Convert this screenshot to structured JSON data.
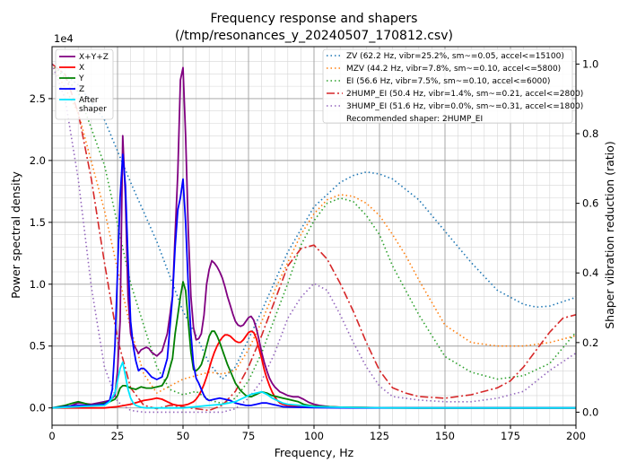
{
  "chart_data": {
    "type": "line",
    "title": "Frequency response and shapers",
    "subtitle": "(/tmp/resonances_y_20240507_170812.csv)",
    "xlabel": "Frequency, Hz",
    "ylabel": "Power spectral density",
    "y2label": "Shaper vibration reduction (ratio)",
    "y_scale_label": "1e4",
    "xlim": [
      0,
      200
    ],
    "ylim": [
      -1400,
      29200
    ],
    "y2lim": [
      -0.0375,
      1.05
    ],
    "x_ticks": [
      0,
      25,
      50,
      75,
      100,
      125,
      150,
      175,
      200
    ],
    "x_tick_labels": [
      "0",
      "25",
      "50",
      "75",
      "100",
      "125",
      "150",
      "175",
      "200"
    ],
    "y_ticks": [
      0,
      5000,
      10000,
      15000,
      20000,
      25000
    ],
    "y_tick_labels": [
      "0.0",
      "0.5",
      "1.0",
      "1.5",
      "2.0",
      "2.5"
    ],
    "y2_ticks": [
      0,
      0.2,
      0.4,
      0.6,
      0.8,
      1.0
    ],
    "y2_tick_labels": [
      "0.0",
      "0.2",
      "0.4",
      "0.6",
      "0.8",
      "1.0"
    ],
    "grid": true,
    "psd_series": [
      {
        "name": "X+Y+Z",
        "color": "#800080",
        "width": 1.8,
        "dash": "",
        "x": [
          5,
          10,
          15,
          20,
          22,
          24,
          25,
          26,
          27,
          28,
          29,
          30,
          31,
          32,
          33,
          34,
          35,
          36,
          37,
          38,
          40,
          42,
          44,
          46,
          47,
          48,
          49,
          50,
          51,
          52,
          53,
          54,
          55,
          56,
          57,
          58,
          59,
          60,
          61,
          62,
          63,
          64,
          65,
          66,
          67,
          68,
          69,
          70,
          71,
          72,
          73,
          74,
          75,
          76,
          77,
          78,
          79,
          80,
          81,
          82,
          83,
          84,
          85,
          86,
          87,
          88,
          90,
          92,
          94,
          96,
          98,
          100,
          102,
          104,
          106,
          110,
          115,
          120,
          125,
          130,
          135,
          140,
          150,
          160,
          170,
          180,
          190,
          200
        ],
        "y": [
          0,
          400,
          300,
          500,
          600,
          1000,
          3000,
          7000,
          22000,
          17000,
          9000,
          6000,
          5200,
          4800,
          4400,
          4700,
          4800,
          4900,
          4800,
          4500,
          4200,
          4600,
          6000,
          9000,
          14000,
          19000,
          26500,
          27500,
          22000,
          14500,
          9000,
          6500,
          5500,
          5600,
          6000,
          7500,
          10000,
          11200,
          11900,
          11700,
          11400,
          11000,
          10500,
          9800,
          9000,
          8300,
          7600,
          7000,
          6700,
          6600,
          6700,
          7000,
          7300,
          7400,
          7100,
          6400,
          5500,
          4500,
          3700,
          3000,
          2400,
          2000,
          1700,
          1500,
          1300,
          1200,
          1000,
          900,
          900,
          700,
          450,
          300,
          200,
          150,
          100,
          60,
          40,
          30,
          20,
          10,
          5,
          0,
          0,
          0,
          0,
          0,
          0,
          0
        ]
      },
      {
        "name": "X",
        "color": "#ff0000",
        "width": 1.8,
        "dash": "",
        "x": [
          0,
          10,
          20,
          25,
          30,
          35,
          38,
          40,
          42,
          44,
          46,
          48,
          50,
          52,
          54,
          55,
          56,
          57,
          58,
          59,
          60,
          61,
          62,
          63,
          64,
          65,
          66,
          67,
          68,
          69,
          70,
          71,
          72,
          73,
          74,
          75,
          76,
          77,
          78,
          79,
          80,
          81,
          82,
          83,
          84,
          85,
          86,
          87,
          88,
          90,
          95,
          100,
          110,
          120,
          130,
          140,
          150,
          160,
          170,
          180,
          190,
          200
        ],
        "y": [
          0,
          0,
          0,
          100,
          300,
          600,
          700,
          800,
          700,
          500,
          300,
          200,
          200,
          300,
          500,
          700,
          1000,
          1400,
          1900,
          2500,
          3200,
          3900,
          4500,
          5000,
          5400,
          5700,
          5900,
          5900,
          5800,
          5600,
          5400,
          5300,
          5300,
          5500,
          5800,
          6100,
          6200,
          6100,
          5600,
          4800,
          4000,
          3100,
          2400,
          1800,
          1300,
          900,
          600,
          400,
          300,
          200,
          100,
          80,
          50,
          30,
          10,
          0,
          0,
          0,
          0,
          0,
          0,
          0
        ]
      },
      {
        "name": "Y",
        "color": "#008000",
        "width": 1.8,
        "dash": "",
        "x": [
          0,
          5,
          8,
          10,
          12,
          15,
          18,
          20,
          22,
          24,
          25,
          26,
          27,
          28,
          29,
          30,
          32,
          34,
          36,
          38,
          40,
          42,
          44,
          46,
          47,
          48,
          49,
          50,
          51,
          52,
          53,
          54,
          55,
          56,
          57,
          58,
          59,
          60,
          61,
          62,
          63,
          64,
          65,
          66,
          67,
          68,
          69,
          70,
          72,
          74,
          76,
          78,
          80,
          82,
          84,
          86,
          88,
          90,
          92,
          94,
          96,
          98,
          100,
          105,
          110,
          115,
          120,
          125,
          130,
          140,
          150,
          160,
          170,
          180,
          190,
          200
        ],
        "y": [
          0,
          200,
          400,
          500,
          400,
          200,
          300,
          400,
          500,
          700,
          1000,
          1600,
          1800,
          1800,
          1700,
          1600,
          1500,
          1700,
          1600,
          1600,
          1700,
          1800,
          2500,
          4000,
          6000,
          7500,
          9000,
          10200,
          9500,
          7000,
          4500,
          3100,
          3000,
          3200,
          3500,
          4200,
          5000,
          5800,
          6200,
          6200,
          5800,
          5300,
          4700,
          4100,
          3500,
          3000,
          2500,
          2000,
          1400,
          1000,
          900,
          1100,
          1300,
          1200,
          1000,
          900,
          800,
          700,
          600,
          500,
          300,
          200,
          150,
          100,
          60,
          40,
          30,
          10,
          0,
          0,
          0,
          0,
          0,
          0,
          0,
          0
        ]
      },
      {
        "name": "Z",
        "color": "#0000ff",
        "width": 1.8,
        "dash": "",
        "x": [
          0,
          5,
          10,
          15,
          20,
          22,
          23,
          24,
          25,
          26,
          27,
          28,
          29,
          30,
          31,
          32,
          33,
          34,
          35,
          36,
          38,
          40,
          42,
          44,
          46,
          47,
          48,
          49,
          50,
          51,
          52,
          53,
          54,
          55,
          56,
          57,
          58,
          59,
          60,
          62,
          64,
          66,
          68,
          70,
          72,
          74,
          76,
          78,
          80,
          82,
          84,
          86,
          88,
          90,
          95,
          100,
          110,
          120,
          130,
          140,
          150,
          160,
          170,
          180,
          190,
          200
        ],
        "y": [
          0,
          100,
          200,
          200,
          300,
          600,
          1500,
          5000,
          11000,
          17000,
          20500,
          18000,
          12000,
          7000,
          5000,
          3800,
          3000,
          3200,
          3200,
          3000,
          2500,
          2300,
          2500,
          4000,
          9000,
          13000,
          16000,
          17000,
          18500,
          15000,
          10000,
          6000,
          3500,
          2400,
          2000,
          1500,
          1000,
          700,
          600,
          700,
          800,
          700,
          600,
          400,
          300,
          200,
          200,
          300,
          400,
          400,
          300,
          200,
          100,
          80,
          50,
          20,
          10,
          0,
          0,
          0,
          0,
          0,
          0,
          0,
          0,
          0
        ]
      },
      {
        "name": "After\nshaper",
        "color": "#00e5ff",
        "width": 1.8,
        "dash": "",
        "x": [
          0,
          10,
          20,
          22,
          24,
          25,
          26,
          27,
          28,
          29,
          30,
          31,
          32,
          34,
          36,
          38,
          40,
          45,
          50,
          55,
          60,
          65,
          70,
          72,
          74,
          76,
          78,
          80,
          82,
          84,
          86,
          88,
          90,
          95,
          100,
          110,
          120,
          130,
          140,
          150,
          160,
          170,
          180,
          190,
          200
        ],
        "y": [
          0,
          100,
          200,
          500,
          1200,
          2200,
          3200,
          3700,
          2600,
          1500,
          800,
          400,
          200,
          50,
          0,
          0,
          0,
          0,
          0,
          100,
          200,
          300,
          500,
          700,
          900,
          1100,
          1200,
          1300,
          1100,
          800,
          600,
          400,
          300,
          200,
          100,
          50,
          20,
          10,
          0,
          0,
          0,
          0,
          0,
          0,
          0
        ]
      }
    ],
    "shaper_series": [
      {
        "name": "ZV (62.2 Hz, vibr=25.2%, sm~=0.05, accel<=15100)",
        "color": "#1f77b4",
        "width": 1.6,
        "dash": "1.5,3",
        "x": [
          0,
          10,
          20,
          30,
          40,
          50,
          55,
          60,
          65,
          70,
          75,
          80,
          90,
          100,
          110,
          115,
          120,
          125,
          130,
          140,
          150,
          160,
          170,
          180,
          185,
          190,
          200
        ],
        "y": [
          1.0,
          0.94,
          0.84,
          0.66,
          0.49,
          0.29,
          0.22,
          0.14,
          0.095,
          0.13,
          0.21,
          0.29,
          0.46,
          0.59,
          0.66,
          0.68,
          0.69,
          0.684,
          0.67,
          0.61,
          0.52,
          0.43,
          0.35,
          0.31,
          0.302,
          0.305,
          0.33
        ]
      },
      {
        "name": "MZV (44.2 Hz, vibr=7.8%, sm~=0.10, accel<=5800)",
        "color": "#ff7f0e",
        "width": 1.6,
        "dash": "1.5,3",
        "x": [
          0,
          10,
          20,
          25,
          30,
          35,
          40,
          45,
          50,
          55,
          60,
          65,
          70,
          75,
          80,
          85,
          90,
          95,
          100,
          105,
          110,
          115,
          120,
          125,
          130,
          135,
          140,
          150,
          160,
          170,
          180,
          190,
          200
        ],
        "y": [
          1.0,
          0.86,
          0.58,
          0.41,
          0.24,
          0.11,
          0.055,
          0.075,
          0.095,
          0.105,
          0.115,
          0.11,
          0.12,
          0.18,
          0.26,
          0.35,
          0.43,
          0.51,
          0.57,
          0.61,
          0.625,
          0.62,
          0.6,
          0.565,
          0.51,
          0.45,
          0.38,
          0.25,
          0.2,
          0.19,
          0.19,
          0.2,
          0.22
        ]
      },
      {
        "name": "EI (56.6 Hz, vibr=7.5%, sm~=0.10, accel<=6000)",
        "color": "#2ca02c",
        "width": 1.6,
        "dash": "1.5,3",
        "x": [
          0,
          10,
          20,
          25,
          30,
          40,
          45,
          50,
          55,
          60,
          65,
          70,
          75,
          80,
          90,
          95,
          100,
          105,
          110,
          115,
          120,
          125,
          130,
          140,
          150,
          160,
          170,
          180,
          190,
          200
        ],
        "y": [
          1.0,
          0.92,
          0.71,
          0.54,
          0.37,
          0.13,
          0.065,
          0.05,
          0.06,
          0.035,
          0.025,
          0.04,
          0.09,
          0.17,
          0.37,
          0.48,
          0.55,
          0.6,
          0.615,
          0.605,
          0.565,
          0.51,
          0.42,
          0.28,
          0.16,
          0.115,
          0.095,
          0.105,
          0.14,
          0.23
        ]
      },
      {
        "name": "2HUMP_EI (50.4 Hz, vibr=1.4%, sm~=0.21, accel<=2800)",
        "color": "#d62728",
        "width": 1.6,
        "dash": "9,3,2,3",
        "x": [
          0,
          5,
          10,
          15,
          20,
          25,
          30,
          35,
          40,
          45,
          50,
          55,
          60,
          65,
          70,
          75,
          80,
          85,
          90,
          95,
          100,
          105,
          110,
          115,
          120,
          125,
          130,
          135,
          140,
          150,
          160,
          170,
          175,
          180,
          185,
          190,
          195,
          200
        ],
        "y": [
          1.0,
          0.97,
          0.86,
          0.67,
          0.43,
          0.21,
          0.07,
          0.02,
          0.01,
          0.02,
          0.015,
          0.01,
          0.005,
          0.02,
          0.06,
          0.13,
          0.22,
          0.32,
          0.42,
          0.47,
          0.48,
          0.44,
          0.37,
          0.29,
          0.2,
          0.12,
          0.07,
          0.055,
          0.045,
          0.04,
          0.05,
          0.07,
          0.09,
          0.13,
          0.18,
          0.23,
          0.27,
          0.28
        ]
      },
      {
        "name": "3HUMP_EI (51.6 Hz, vibr=0.0%, sm~=0.31, accel<=1800)",
        "color": "#9467bd",
        "width": 1.6,
        "dash": "1.5,3",
        "x": [
          0,
          5,
          10,
          15,
          20,
          25,
          30,
          35,
          40,
          45,
          50,
          55,
          60,
          65,
          70,
          75,
          80,
          85,
          90,
          95,
          100,
          105,
          110,
          115,
          120,
          125,
          130,
          140,
          150,
          160,
          170,
          180,
          190,
          200
        ],
        "y": [
          1.0,
          0.9,
          0.67,
          0.36,
          0.13,
          0.03,
          0.005,
          0.0,
          0.0,
          0.0,
          0.0,
          0.0,
          0.0,
          0.0,
          0.01,
          0.04,
          0.09,
          0.17,
          0.27,
          0.33,
          0.37,
          0.35,
          0.28,
          0.2,
          0.13,
          0.075,
          0.045,
          0.035,
          0.03,
          0.03,
          0.04,
          0.06,
          0.12,
          0.17
        ]
      }
    ],
    "legend_left": {
      "placement": "top-left"
    },
    "legend_right": {
      "placement": "top-right",
      "note": "Recommended shaper: 2HUMP_EI"
    }
  }
}
